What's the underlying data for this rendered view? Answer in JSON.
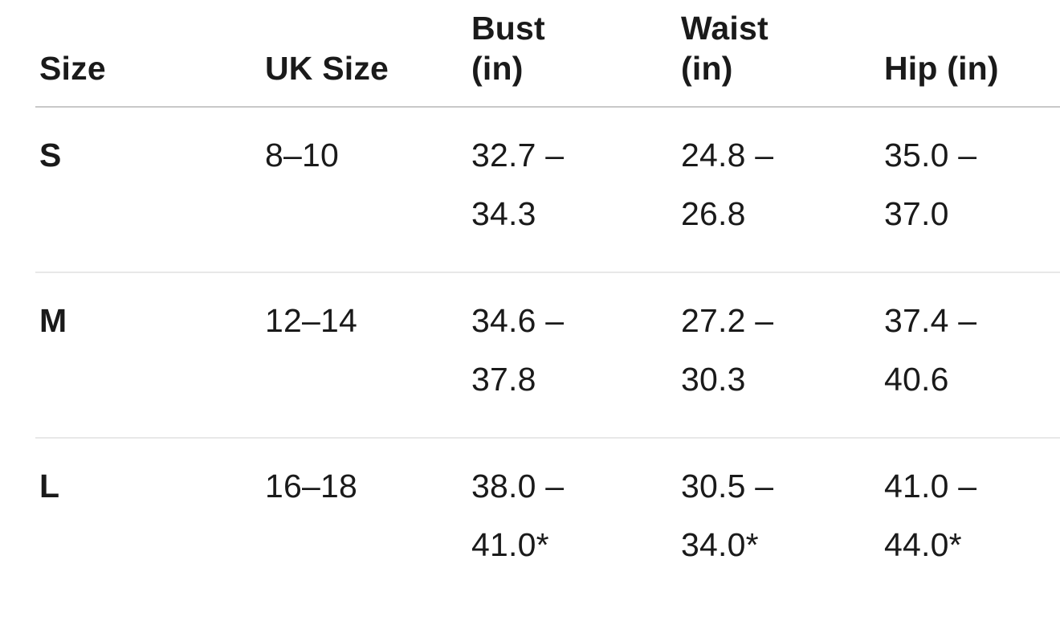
{
  "table": {
    "columns": [
      {
        "id": "size",
        "label": [
          "Size"
        ]
      },
      {
        "id": "uk",
        "label": [
          "UK Size"
        ]
      },
      {
        "id": "bust",
        "label": [
          "Bust",
          "(in)"
        ]
      },
      {
        "id": "waist",
        "label": [
          "Waist",
          "(in)"
        ]
      },
      {
        "id": "hip",
        "label": [
          "Hip (in)"
        ]
      }
    ],
    "rows": [
      {
        "size": "S",
        "uk": "8–10",
        "bust": [
          "32.7 –",
          "34.3"
        ],
        "waist": [
          "24.8 –",
          "26.8"
        ],
        "hip": [
          "35.0 – 37.0"
        ]
      },
      {
        "size": "M",
        "uk": "12–14",
        "bust": [
          "34.6 –",
          "37.8"
        ],
        "waist": [
          "27.2 –",
          "30.3"
        ],
        "hip": [
          "37.4 – 40.6"
        ]
      },
      {
        "size": "L",
        "uk": "16–18",
        "bust": [
          "38.0 –",
          "41.0*"
        ],
        "waist": [
          "30.5 –",
          "34.0*"
        ],
        "hip": [
          "41.0 –",
          "44.0*"
        ]
      }
    ]
  },
  "colors": {
    "background": "#ffffff",
    "text": "#1a1a1a",
    "header_divider": "#c8c8c8",
    "row_divider": "#e8e8e8"
  }
}
